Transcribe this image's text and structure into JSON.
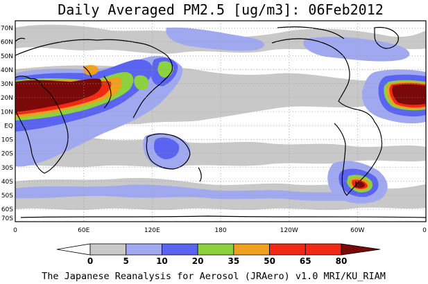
{
  "title": "Daily Averaged PM2.5 [ug/m3]: 06Feb2012",
  "caption": "The Japanese Reanalysis for Aerosol (JRAero) v1.0 MRI/KU_RIAM",
  "map": {
    "lon_ticks": [
      "0",
      "60E",
      "120E",
      "180",
      "120W",
      "60W",
      "0"
    ],
    "lat_ticks": [
      "70N",
      "60N",
      "50N",
      "40N",
      "30N",
      "20N",
      "10N",
      "EQ",
      "10S",
      "20S",
      "30S",
      "40S",
      "50S",
      "60S",
      "70S"
    ]
  },
  "colorbar": {
    "levels": [
      "0",
      "5",
      "10",
      "20",
      "35",
      "50",
      "65",
      "80"
    ],
    "colors": [
      "#ffffff",
      "#c8c8c8",
      "#a0a8f0",
      "#5a64f0",
      "#8cd23c",
      "#f0a01e",
      "#f02814",
      "#7a0a0a"
    ]
  },
  "colors": {
    "gray": "#c8c8c8",
    "light_blue": "#a0a8f0",
    "blue": "#5a64f0",
    "green": "#8cd23c",
    "orange": "#f0a01e",
    "red": "#f02814",
    "maroon": "#7a0a0a"
  }
}
